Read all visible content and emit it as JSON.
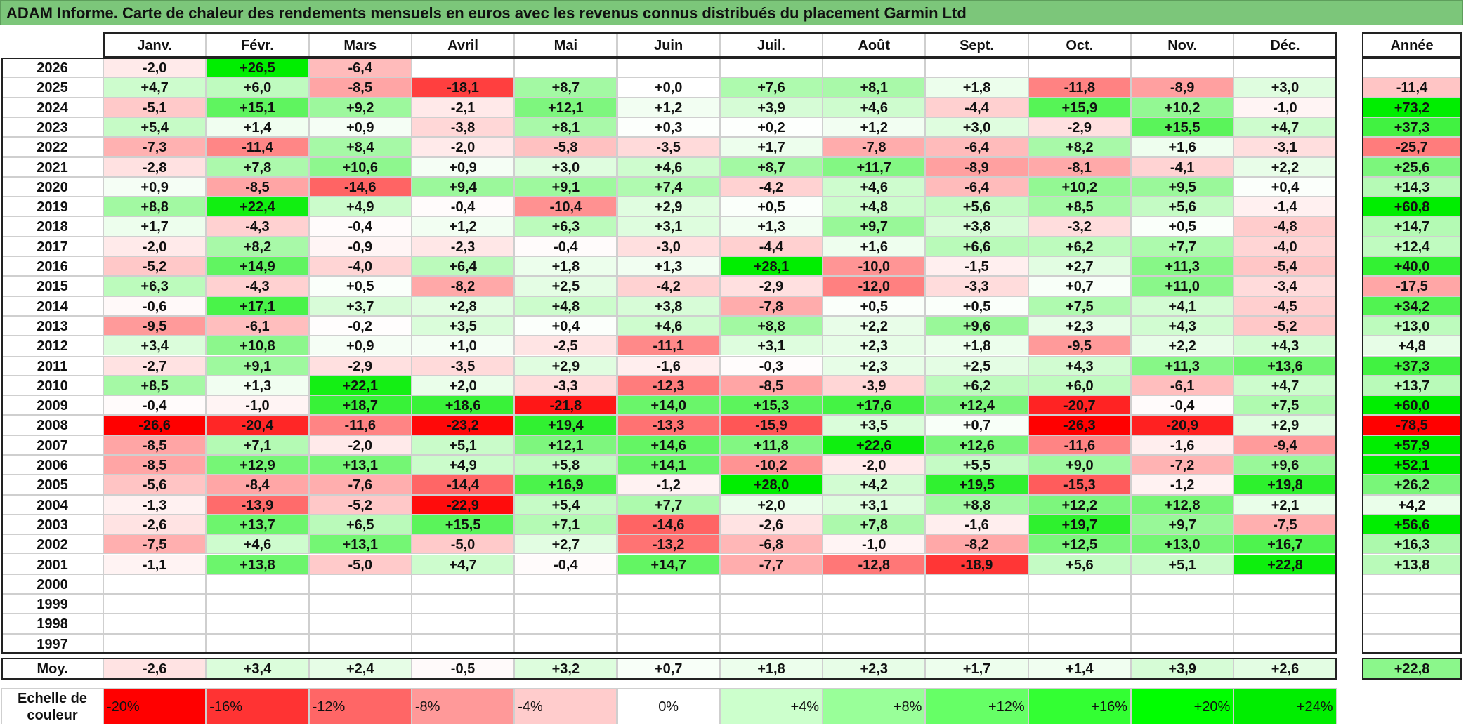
{
  "title": "ADAM Informe. Carte de chaleur des rendements mensuels en euros avec les revenus connus distribués du placement Garmin Ltd",
  "chart_data": {
    "type": "heatmap",
    "title": "ADAM Informe. Carte de chaleur des rendements mensuels en euros avec les revenus connus distribués du placement Garmin Ltd",
    "columns": [
      "Janv.",
      "Févr.",
      "Mars",
      "Avril",
      "Mai",
      "Juin",
      "Juil.",
      "Août",
      "Sept.",
      "Oct.",
      "Nov.",
      "Déc."
    ],
    "year_column_label": "Année",
    "rows": [
      {
        "year": "2026",
        "months": [
          "-2,0",
          "+26,5",
          "-6,4",
          "",
          "",
          "",
          "",
          "",
          "",
          "",
          "",
          ""
        ],
        "annual": ""
      },
      {
        "year": "2025",
        "months": [
          "+4,7",
          "+6,0",
          "-8,5",
          "-18,1",
          "+8,7",
          "+0,0",
          "+7,6",
          "+8,1",
          "+1,8",
          "-11,8",
          "-8,9",
          "+3,0"
        ],
        "annual": "-11,4"
      },
      {
        "year": "2024",
        "months": [
          "-5,1",
          "+15,1",
          "+9,2",
          "-2,1",
          "+12,1",
          "+1,2",
          "+3,9",
          "+4,6",
          "-4,4",
          "+15,9",
          "+10,2",
          "-1,0"
        ],
        "annual": "+73,2"
      },
      {
        "year": "2023",
        "months": [
          "+5,4",
          "+1,4",
          "+0,9",
          "-3,8",
          "+8,1",
          "+0,3",
          "+0,2",
          "+1,2",
          "+3,0",
          "-2,9",
          "+15,5",
          "+4,7"
        ],
        "annual": "+37,3"
      },
      {
        "year": "2022",
        "months": [
          "-7,3",
          "-11,4",
          "+8,4",
          "-2,0",
          "-5,8",
          "-3,5",
          "+1,7",
          "-7,8",
          "-6,4",
          "+8,2",
          "+1,6",
          "-3,1"
        ],
        "annual": "-25,7"
      },
      {
        "year": "2021",
        "months": [
          "-2,8",
          "+7,8",
          "+10,6",
          "+0,9",
          "+3,0",
          "+4,6",
          "+8,7",
          "+11,7",
          "-8,9",
          "-8,1",
          "-4,1",
          "+2,2"
        ],
        "annual": "+25,6"
      },
      {
        "year": "2020",
        "months": [
          "+0,9",
          "-8,5",
          "-14,6",
          "+9,4",
          "+9,1",
          "+7,4",
          "-4,2",
          "+4,6",
          "-6,4",
          "+10,2",
          "+9,5",
          "+0,4"
        ],
        "annual": "+14,3"
      },
      {
        "year": "2019",
        "months": [
          "+8,8",
          "+22,4",
          "+4,9",
          "-0,4",
          "-10,4",
          "+2,9",
          "+0,5",
          "+4,8",
          "+5,6",
          "+8,5",
          "+5,6",
          "-1,4"
        ],
        "annual": "+60,8"
      },
      {
        "year": "2018",
        "months": [
          "+1,7",
          "-4,3",
          "-0,4",
          "+1,2",
          "+6,3",
          "+3,1",
          "+1,3",
          "+9,7",
          "+3,8",
          "-3,2",
          "+0,5",
          "-4,8"
        ],
        "annual": "+14,7"
      },
      {
        "year": "2017",
        "months": [
          "-2,0",
          "+8,2",
          "-0,9",
          "-2,3",
          "-0,4",
          "-3,0",
          "-4,4",
          "+1,6",
          "+6,6",
          "+6,2",
          "+7,7",
          "-4,0"
        ],
        "annual": "+12,4"
      },
      {
        "year": "2016",
        "months": [
          "-5,2",
          "+14,9",
          "-4,0",
          "+6,4",
          "+1,8",
          "+1,3",
          "+28,1",
          "-10,0",
          "-1,5",
          "+2,7",
          "+11,3",
          "-5,4"
        ],
        "annual": "+40,0"
      },
      {
        "year": "2015",
        "months": [
          "+6,3",
          "-4,3",
          "+0,5",
          "-8,2",
          "+2,5",
          "-4,2",
          "-2,9",
          "-12,0",
          "-3,3",
          "+0,7",
          "+11,0",
          "-3,4"
        ],
        "annual": "-17,5"
      },
      {
        "year": "2014",
        "months": [
          "-0,6",
          "+17,1",
          "+3,7",
          "+2,8",
          "+4,8",
          "+3,8",
          "-7,8",
          "+0,5",
          "+0,5",
          "+7,5",
          "+4,1",
          "-4,5"
        ],
        "annual": "+34,2"
      },
      {
        "year": "2013",
        "months": [
          "-9,5",
          "-6,1",
          "-0,2",
          "+3,5",
          "+0,4",
          "+4,6",
          "+8,8",
          "+2,2",
          "+9,6",
          "+2,3",
          "+4,3",
          "-5,2"
        ],
        "annual": "+13,0"
      },
      {
        "year": "2012",
        "months": [
          "+3,4",
          "+10,8",
          "+0,9",
          "+1,0",
          "-2,5",
          "-11,1",
          "+3,1",
          "+2,3",
          "+1,8",
          "-9,5",
          "+2,2",
          "+4,3"
        ],
        "annual": "+4,8"
      },
      {
        "year": "2011",
        "months": [
          "-2,7",
          "+9,1",
          "-2,9",
          "-3,5",
          "+2,9",
          "-1,6",
          "-0,3",
          "+2,3",
          "+2,5",
          "+4,3",
          "+11,3",
          "+13,6"
        ],
        "annual": "+37,3"
      },
      {
        "year": "2010",
        "months": [
          "+8,5",
          "+1,3",
          "+22,1",
          "+2,0",
          "-3,3",
          "-12,3",
          "-8,5",
          "-3,9",
          "+6,2",
          "+6,0",
          "-6,1",
          "+4,7"
        ],
        "annual": "+13,7"
      },
      {
        "year": "2009",
        "months": [
          "-0,4",
          "-1,0",
          "+18,7",
          "+18,6",
          "-21,8",
          "+14,0",
          "+15,3",
          "+17,6",
          "+12,4",
          "-20,7",
          "-0,4",
          "+7,5"
        ],
        "annual": "+60,0"
      },
      {
        "year": "2008",
        "months": [
          "-26,6",
          "-20,4",
          "-11,6",
          "-23,2",
          "+19,4",
          "-13,3",
          "-15,9",
          "+3,5",
          "+0,7",
          "-26,3",
          "-20,9",
          "+2,9"
        ],
        "annual": "-78,5"
      },
      {
        "year": "2007",
        "months": [
          "-8,5",
          "+7,1",
          "-2,0",
          "+5,1",
          "+12,1",
          "+14,6",
          "+11,8",
          "+22,6",
          "+12,6",
          "-11,6",
          "-1,6",
          "-9,4"
        ],
        "annual": "+57,9"
      },
      {
        "year": "2006",
        "months": [
          "-8,5",
          "+12,9",
          "+13,1",
          "+4,9",
          "+5,8",
          "+14,1",
          "-10,2",
          "-2,0",
          "+5,5",
          "+9,0",
          "-7,2",
          "+9,6"
        ],
        "annual": "+52,1"
      },
      {
        "year": "2005",
        "months": [
          "-5,6",
          "-8,4",
          "-7,6",
          "-14,4",
          "+16,9",
          "-1,2",
          "+28,0",
          "+4,2",
          "+19,5",
          "-15,3",
          "-1,2",
          "+19,8"
        ],
        "annual": "+26,2"
      },
      {
        "year": "2004",
        "months": [
          "-1,3",
          "-13,9",
          "-5,2",
          "-22,9",
          "+5,4",
          "+7,7",
          "+2,0",
          "+3,1",
          "+8,8",
          "+12,2",
          "+12,8",
          "+2,1"
        ],
        "annual": "+4,2"
      },
      {
        "year": "2003",
        "months": [
          "-2,6",
          "+13,7",
          "+6,5",
          "+15,5",
          "+7,1",
          "-14,6",
          "-2,6",
          "+7,8",
          "-1,6",
          "+19,7",
          "+9,7",
          "-7,5"
        ],
        "annual": "+56,6"
      },
      {
        "year": "2002",
        "months": [
          "-7,5",
          "+4,6",
          "+13,1",
          "-5,0",
          "+2,7",
          "-13,2",
          "-6,8",
          "-1,0",
          "-8,2",
          "+12,5",
          "+13,0",
          "+16,7"
        ],
        "annual": "+16,3"
      },
      {
        "year": "2001",
        "months": [
          "-1,1",
          "+13,8",
          "-5,0",
          "+4,7",
          "-0,4",
          "+14,7",
          "-7,7",
          "-12,8",
          "-18,9",
          "+5,6",
          "+5,1",
          "+22,8"
        ],
        "annual": "+13,8"
      },
      {
        "year": "2000",
        "months": [
          "",
          "",
          "",
          "",
          "",
          "",
          "",
          "",
          "",
          "",
          "",
          ""
        ],
        "annual": ""
      },
      {
        "year": "1999",
        "months": [
          "",
          "",
          "",
          "",
          "",
          "",
          "",
          "",
          "",
          "",
          "",
          ""
        ],
        "annual": ""
      },
      {
        "year": "1998",
        "months": [
          "",
          "",
          "",
          "",
          "",
          "",
          "",
          "",
          "",
          "",
          "",
          ""
        ],
        "annual": ""
      },
      {
        "year": "1997",
        "months": [
          "",
          "",
          "",
          "",
          "",
          "",
          "",
          "",
          "",
          "",
          "",
          ""
        ],
        "annual": ""
      }
    ],
    "average": {
      "label": "Moy.",
      "months": [
        "-2,6",
        "+3,4",
        "+2,4",
        "-0,5",
        "+3,2",
        "+0,7",
        "+1,8",
        "+2,3",
        "+1,7",
        "+1,4",
        "+3,9",
        "+2,6"
      ],
      "annual": "+22,8"
    },
    "color_scale": {
      "label": "Echelle de couleur",
      "steps": [
        {
          "label": "-20%",
          "value": -20,
          "color": "#ff0000"
        },
        {
          "label": "-16%",
          "value": -16,
          "color": "#ff3333"
        },
        {
          "label": "-12%",
          "value": -12,
          "color": "#ff6666"
        },
        {
          "label": "-8%",
          "value": -8,
          "color": "#ff9999"
        },
        {
          "label": "-4%",
          "value": -4,
          "color": "#ffcccc"
        },
        {
          "label": "0%",
          "value": 0,
          "color": "#ffffff"
        },
        {
          "label": "+4%",
          "value": 4,
          "color": "#ccffcc"
        },
        {
          "label": "+8%",
          "value": 8,
          "color": "#99ff99"
        },
        {
          "label": "+12%",
          "value": 12,
          "color": "#66ff66"
        },
        {
          "label": "+16%",
          "value": 16,
          "color": "#33ff33"
        },
        {
          "label": "+20%",
          "value": 20,
          "color": "#00ff00"
        },
        {
          "label": "+24%",
          "value": 24,
          "color": "#00ee00"
        }
      ]
    },
    "colors": {
      "negative_max": "#ff0000",
      "neutral": "#ffffff",
      "positive_max": "#00ee00",
      "title_bar": "#7cc67a"
    }
  }
}
